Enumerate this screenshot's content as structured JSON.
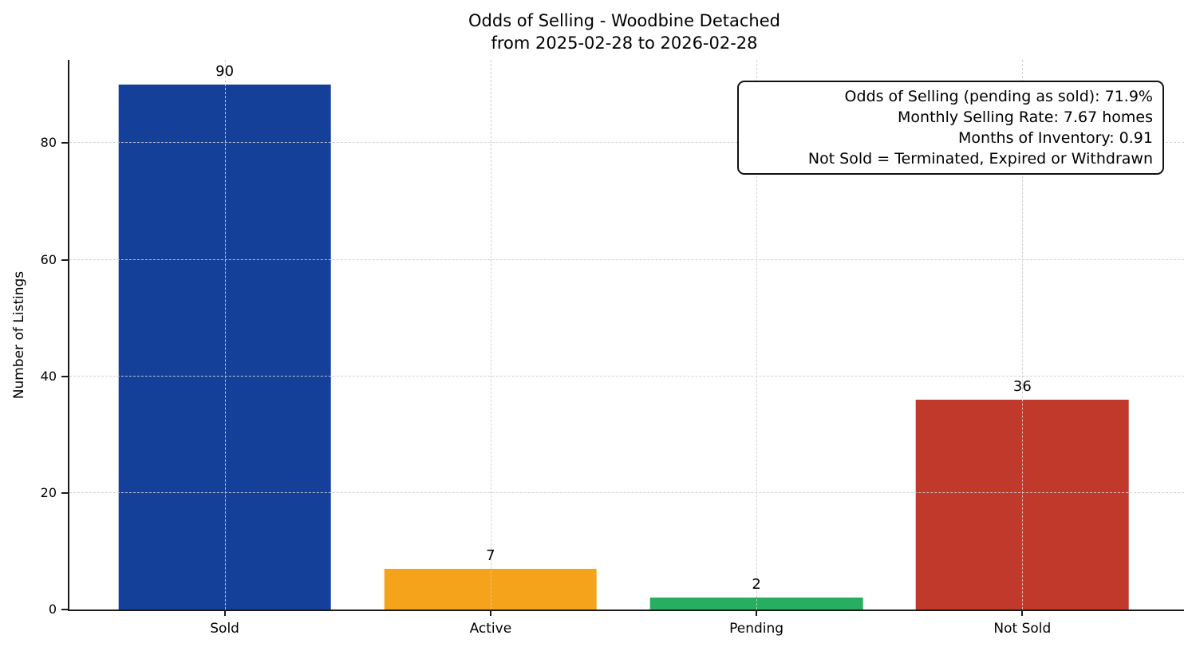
{
  "title": {
    "line1": "Odds of Selling - Woodbine Detached",
    "line2": "from 2025-02-28 to 2026-02-28"
  },
  "ylabel": "Number of Listings",
  "annotation": {
    "lines": [
      "Odds of Selling (pending as sold): 71.9%",
      "Monthly Selling Rate: 7.67 homes",
      "Months of Inventory: 0.91",
      "Not Sold = Terminated, Expired or Withdrawn"
    ]
  },
  "chart_data": {
    "type": "bar",
    "title": "Odds of Selling - Woodbine Detached\nfrom 2025-02-28 to 2026-02-28",
    "categories": [
      "Sold",
      "Active",
      "Pending",
      "Not Sold"
    ],
    "values": [
      90,
      7,
      2,
      36
    ],
    "bar_colors": [
      "#14409a",
      "#f4a31a",
      "#27ae60",
      "#c0392b"
    ],
    "value_labels": [
      "90",
      "7",
      "2",
      "36"
    ],
    "xlabel": "",
    "ylabel": "Number of Listings",
    "ylim": [
      0,
      94.3
    ],
    "yticks": [
      0,
      20,
      40,
      60,
      80
    ],
    "grid": "dashed, light gray, horizontal at yticks and vertical at bar centers",
    "legend": "none",
    "annotation_box": {
      "position": "top-right",
      "lines": [
        "Odds of Selling (pending as sold): 71.9%",
        "Monthly Selling Rate: 7.67 homes",
        "Months of Inventory: 0.91",
        "Not Sold = Terminated, Expired or Withdrawn"
      ]
    }
  }
}
